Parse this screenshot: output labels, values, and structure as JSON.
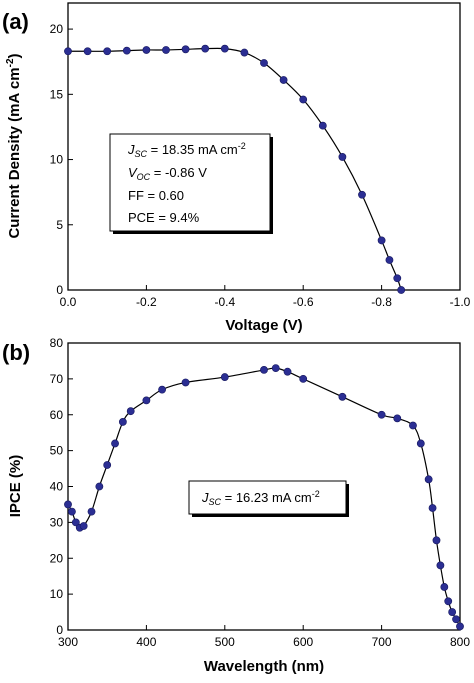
{
  "chart_data": [
    {
      "panel_label": "(a)",
      "type": "line",
      "xlabel": "Voltage (V)",
      "ylabel": "Current Density (mA cm",
      "ylabel_sup": "-2",
      "ylabel_end": ")",
      "xlim": [
        0.0,
        -1.0
      ],
      "ylim": [
        0,
        22
      ],
      "xticks": [
        0.0,
        -0.2,
        -0.4,
        -0.6,
        -0.8,
        -1.0
      ],
      "xtick_labels": [
        "0.0",
        "-0.2",
        "-0.4",
        "-0.6",
        "-0.8",
        "-1.0"
      ],
      "yticks": [
        0,
        5,
        10,
        15,
        20
      ],
      "ytick_labels": [
        "0",
        "5",
        "10",
        "15",
        "20"
      ],
      "series_color": "#2b2e93",
      "annotation": {
        "jsc_sym": "J",
        "jsc_sub": "SC",
        "jsc_val": " = 18.35 mA cm",
        "jsc_sup": "-2",
        "voc_sym": "V",
        "voc_sub": "OC",
        "voc_val": " = -0.86 V",
        "ff": "FF = 0.60",
        "pce": "PCE = 9.4%"
      },
      "x": [
        0,
        -0.05,
        -0.1,
        -0.15,
        -0.2,
        -0.25,
        -0.3,
        -0.35,
        -0.4,
        -0.45,
        -0.5,
        -0.55,
        -0.6,
        -0.65,
        -0.7,
        -0.75,
        -0.8,
        -0.82,
        -0.84,
        -0.85
      ],
      "y": [
        18.3,
        18.3,
        18.3,
        18.35,
        18.4,
        18.4,
        18.45,
        18.5,
        18.5,
        18.2,
        17.4,
        16.1,
        14.6,
        12.6,
        10.2,
        7.3,
        3.8,
        2.3,
        0.9,
        0.0
      ]
    },
    {
      "panel_label": "(b)",
      "type": "line",
      "xlabel": "Wavelength (nm)",
      "ylabel": "IPCE (%)",
      "xlim": [
        300,
        800
      ],
      "ylim": [
        0,
        80
      ],
      "xticks": [
        300,
        400,
        500,
        600,
        700,
        800
      ],
      "xtick_labels": [
        "300",
        "400",
        "500",
        "600",
        "700",
        "800"
      ],
      "yticks": [
        0,
        10,
        20,
        30,
        40,
        50,
        60,
        70,
        80
      ],
      "ytick_labels": [
        "0",
        "10",
        "20",
        "30",
        "40",
        "50",
        "60",
        "70",
        "80"
      ],
      "series_color": "#2b2e93",
      "annotation": {
        "jsc_sym": "J",
        "jsc_sub": "SC",
        "jsc_val": " = 16.23 mA cm",
        "jsc_sup": "-2"
      },
      "x": [
        300,
        305,
        310,
        315,
        320,
        330,
        340,
        350,
        360,
        370,
        380,
        400,
        420,
        450,
        500,
        550,
        565,
        580,
        600,
        650,
        700,
        720,
        740,
        750,
        760,
        765,
        770,
        775,
        780,
        785,
        790,
        795,
        800
      ],
      "y": [
        35,
        33,
        30,
        28.5,
        29,
        33,
        40,
        46,
        52,
        58,
        61,
        64,
        67,
        69,
        70.5,
        72.5,
        73,
        72,
        70,
        65,
        60,
        59,
        57,
        52,
        42,
        34,
        25,
        18,
        12,
        8,
        5,
        3,
        1
      ]
    }
  ]
}
